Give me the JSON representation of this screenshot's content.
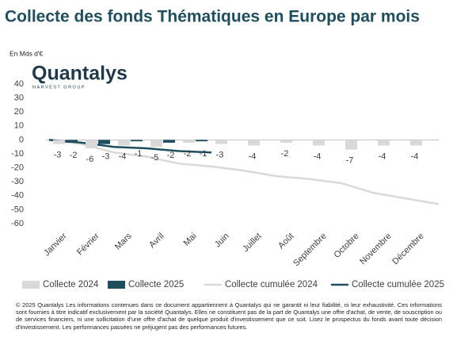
{
  "chart_data": {
    "type": "bar",
    "title": "Collecte des fonds Thématiques en Europe par mois",
    "y_label": "En Mds d'€",
    "categories": [
      "Janvier",
      "Février",
      "Mars",
      "Avril",
      "Mai",
      "Juin",
      "Juillet",
      "Août",
      "Septembre",
      "Octobre",
      "Novembre",
      "Décembre"
    ],
    "series": [
      {
        "name": "Collecte 2024",
        "kind": "bar",
        "color": "#d9d9d9",
        "values": [
          -3,
          -6,
          -4,
          -5,
          -2,
          -3,
          -4,
          -2,
          -4,
          -7,
          -4,
          -4
        ]
      },
      {
        "name": "Collecte 2025",
        "kind": "bar",
        "color": "#1f4e5f",
        "values": [
          -2,
          -3,
          -1,
          -2,
          -1,
          null,
          null,
          null,
          null,
          null,
          null,
          null
        ]
      },
      {
        "name": "Collecte cumulée 2024",
        "kind": "line",
        "color": "#d9d9d9",
        "values": [
          -3,
          -9,
          -12,
          -17,
          -19,
          -22,
          -26,
          -28,
          -31,
          -38,
          -42,
          -46
        ]
      },
      {
        "name": "Collecte cumulée 2025",
        "kind": "line",
        "color": "#1f4e5f",
        "values": [
          -2,
          -5,
          -6,
          -8,
          -9,
          null,
          null,
          null,
          null,
          null,
          null,
          null
        ]
      }
    ],
    "ylim": [
      -60,
      40
    ],
    "yticks": [
      -60,
      -50,
      -40,
      -30,
      -20,
      -10,
      0,
      10,
      20,
      30,
      40
    ],
    "grid": false,
    "legend": "bottom"
  },
  "logo": {
    "name": "Quantalys",
    "tagline": "HARVEST GROUP"
  },
  "footer": "© 2025 Quantalys Les informations contenues dans ce document appartiennent à Quantalys qui ne garantit ni leur fiabilité, ni leur exhaustivité. Ces informations sont fournies à titre indicatif exclusivement par la société Quantalys. Elles ne constituent pas de la part de Quantalys une offre d'achat, de vente, de souscription ou de services financiers, ni une sollicitation d'une offre d'achat de quelque produit d'investissement que ce soit. Lisez le prospectus du fonds avant toute décision d'investissement. Les performances passées ne préjugent pas des performances futures."
}
